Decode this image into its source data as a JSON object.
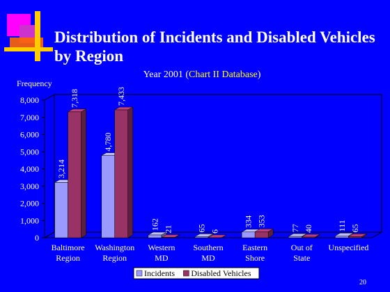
{
  "slide": {
    "title": "Distribution of Incidents and Disabled Vehicles by Region",
    "page_number": "20"
  },
  "chart_data": {
    "type": "bar",
    "subtitle_prefix": "Year 2001 (",
    "subtitle_highlight": "Chart II Database",
    "subtitle_suffix": ")",
    "ylabel": "Frequency",
    "xlabel": "",
    "ylim": [
      0,
      8000
    ],
    "yticks": [
      0,
      1000,
      2000,
      3000,
      4000,
      5000,
      6000,
      7000,
      8000
    ],
    "ytick_labels": [
      "0",
      "1,000",
      "2,000",
      "3,000",
      "4,000",
      "5,000",
      "6,000",
      "7,000",
      "8,000"
    ],
    "categories": [
      [
        "Baltimore",
        "Region"
      ],
      [
        "Washington",
        "Region"
      ],
      [
        "Western",
        "MD"
      ],
      [
        "Southern",
        "MD"
      ],
      [
        "Eastern",
        "Shore"
      ],
      [
        "Out of",
        "State"
      ],
      [
        "Unspecified"
      ]
    ],
    "series": [
      {
        "name": "Incidents",
        "color": "#9999ff",
        "values": [
          3214,
          4780,
          162,
          65,
          334,
          77,
          111
        ],
        "labels": [
          "3,214",
          "4,780",
          "162",
          "65",
          "334",
          "77",
          "111"
        ]
      },
      {
        "name": "Disabled Vehicles",
        "color": "#993366",
        "values": [
          7318,
          7433,
          21,
          6,
          353,
          40,
          65
        ],
        "labels": [
          "7,318",
          "7,433",
          "21",
          "6",
          "353",
          "40",
          "65"
        ]
      }
    ],
    "grid": false,
    "legend": "bottom",
    "colors": {
      "background": "#0000ff",
      "text": "#ffffff",
      "subtitle_highlight": "#ffff00",
      "axis": "#000000"
    }
  }
}
